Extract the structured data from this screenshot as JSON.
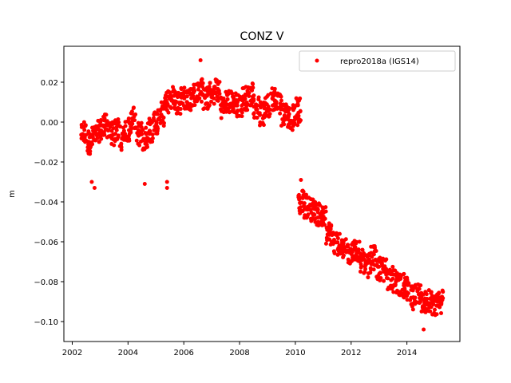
{
  "chart_data": {
    "type": "scatter",
    "title": "CONZ V",
    "xlabel": "",
    "ylabel": "m",
    "xlim": [
      2001.7,
      2015.9
    ],
    "ylim": [
      -0.11,
      0.038
    ],
    "x_ticks": [
      2002,
      2004,
      2006,
      2008,
      2010,
      2012,
      2014
    ],
    "x_tick_labels": [
      "2002",
      "2004",
      "2006",
      "2008",
      "2010",
      "2012",
      "2014"
    ],
    "y_ticks": [
      0.02,
      0.0,
      -0.02,
      -0.04,
      -0.06,
      -0.08,
      -0.1
    ],
    "y_tick_labels": [
      "0.02",
      "0.00",
      "−0.02",
      "−0.04",
      "−0.06",
      "−0.08",
      "−0.10"
    ],
    "grid": false,
    "legend_position": "top-right",
    "series": [
      {
        "name": "repro2018a (IGS14)",
        "color": "#ff0000",
        "marker": "circle",
        "x": [
          2002.4,
          2002.6,
          2002.8,
          2003.0,
          2003.2,
          2003.4,
          2003.6,
          2003.8,
          2004.0,
          2004.2,
          2004.4,
          2004.6,
          2004.8,
          2005.0,
          2005.2,
          2005.4,
          2005.6,
          2005.8,
          2006.0,
          2006.2,
          2006.4,
          2006.6,
          2006.8,
          2007.0,
          2007.2,
          2007.4,
          2007.6,
          2007.8,
          2008.0,
          2008.2,
          2008.4,
          2008.6,
          2008.8,
          2009.0,
          2009.2,
          2009.4,
          2009.6,
          2009.8,
          2010.0,
          2010.1,
          2010.2,
          2010.4,
          2010.6,
          2010.8,
          2011.0,
          2011.2,
          2011.4,
          2011.6,
          2011.8,
          2012.0,
          2012.2,
          2012.4,
          2012.6,
          2012.8,
          2013.0,
          2013.2,
          2013.4,
          2013.6,
          2013.8,
          2014.0,
          2014.2,
          2014.4,
          2014.6,
          2014.8,
          2015.0,
          2015.2
        ],
        "y": [
          -0.006,
          -0.01,
          -0.008,
          -0.004,
          -0.002,
          -0.006,
          -0.004,
          -0.008,
          -0.004,
          0.002,
          -0.006,
          -0.008,
          -0.004,
          0.0,
          0.004,
          0.01,
          0.012,
          0.01,
          0.012,
          0.012,
          0.014,
          0.016,
          0.012,
          0.014,
          0.016,
          0.008,
          0.01,
          0.01,
          0.008,
          0.012,
          0.014,
          0.008,
          0.004,
          0.008,
          0.012,
          0.01,
          0.004,
          0.002,
          0.004,
          0.006,
          -0.04,
          -0.042,
          -0.044,
          -0.046,
          -0.048,
          -0.056,
          -0.06,
          -0.062,
          -0.064,
          -0.066,
          -0.064,
          -0.07,
          -0.072,
          -0.068,
          -0.074,
          -0.074,
          -0.078,
          -0.08,
          -0.082,
          -0.084,
          -0.088,
          -0.086,
          -0.09,
          -0.09,
          -0.092,
          -0.09
        ]
      }
    ],
    "outliers": {
      "x": [
        2002.7,
        2002.8,
        2004.6,
        2005.4,
        2005.4,
        2006.6,
        2014.6,
        2010.2
      ],
      "y": [
        -0.03,
        -0.033,
        -0.031,
        -0.03,
        -0.033,
        0.031,
        -0.104,
        -0.029
      ]
    }
  }
}
